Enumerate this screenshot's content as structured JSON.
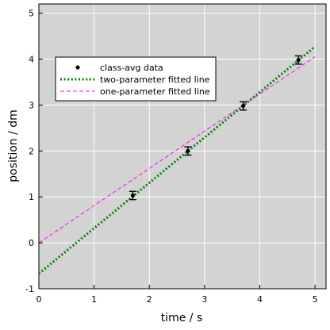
{
  "chart_data": {
    "type": "scatter",
    "title": "",
    "xlabel": "time / s",
    "ylabel": "position / dm",
    "xlim": [
      0,
      5.2
    ],
    "ylim": [
      -1,
      5.2
    ],
    "xticks": [
      0,
      1,
      2,
      3,
      4,
      5
    ],
    "yticks": [
      -1,
      0,
      1,
      2,
      3,
      4,
      5
    ],
    "grid": true,
    "background": "#d3d3d3",
    "legend_position": "upper-left",
    "series": [
      {
        "name": "class-avg data",
        "kind": "points-with-error",
        "color": "#000000",
        "x": [
          1.7,
          2.7,
          3.7,
          4.7
        ],
        "y": [
          1.03,
          2.0,
          2.98,
          3.98
        ],
        "yerr": [
          0.09,
          0.09,
          0.09,
          0.09
        ]
      },
      {
        "name": "two-parameter fitted line",
        "kind": "line",
        "style": "dotted",
        "color": "#008000",
        "x": [
          0,
          5
        ],
        "y": [
          -0.67,
          4.27
        ]
      },
      {
        "name": "one-parameter fitted line",
        "kind": "line",
        "style": "dashed",
        "color": "#ff00ff",
        "x": [
          0,
          5
        ],
        "y": [
          0.0,
          4.05
        ]
      }
    ]
  }
}
